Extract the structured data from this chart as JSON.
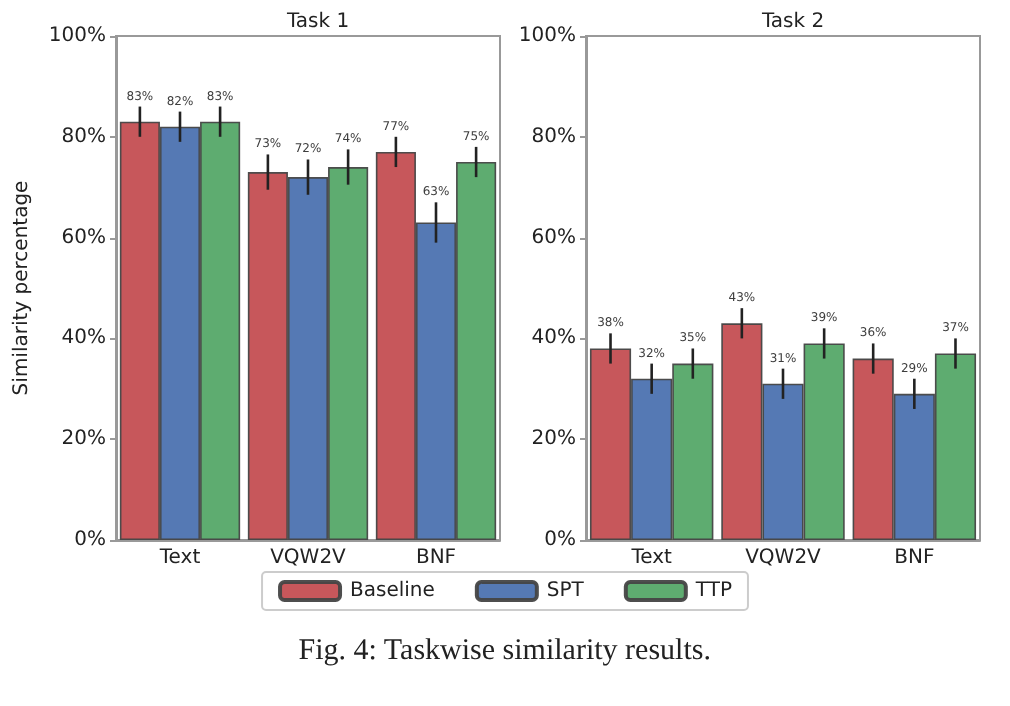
{
  "chart_data": [
    {
      "type": "bar",
      "title": "Task 1",
      "ylabel": "Similarity percentage",
      "categories": [
        "Text",
        "VQW2V",
        "BNF"
      ],
      "series": [
        {
          "name": "Baseline",
          "color": "#c44e52",
          "values": [
            83,
            73,
            77
          ],
          "errors": [
            3,
            3.5,
            3
          ],
          "value_labels": [
            "83%",
            "73%",
            "77%"
          ]
        },
        {
          "name": "SPT",
          "color": "#4c72b0",
          "values": [
            82,
            72,
            63
          ],
          "errors": [
            3,
            3.5,
            4
          ],
          "value_labels": [
            "82%",
            "72%",
            "63%"
          ]
        },
        {
          "name": "TTP",
          "color": "#55a868",
          "values": [
            83,
            74,
            75
          ],
          "errors": [
            3,
            3.5,
            3
          ],
          "value_labels": [
            "83%",
            "74%",
            "75%"
          ]
        }
      ],
      "ylim": [
        0,
        100
      ],
      "yticks": [
        {
          "value": 0,
          "label": "0%"
        },
        {
          "value": 20,
          "label": "20%"
        },
        {
          "value": 40,
          "label": "40%"
        },
        {
          "value": 60,
          "label": "60%"
        },
        {
          "value": 80,
          "label": "80%"
        },
        {
          "value": 100,
          "label": "100%"
        }
      ],
      "grid": false,
      "legend": "bottom",
      "annotations": [
        "Fig. 4: Taskwise similarity results."
      ]
    },
    {
      "type": "bar",
      "title": "Task 2",
      "categories": [
        "Text",
        "VQW2V",
        "BNF"
      ],
      "series": [
        {
          "color": "#c44e52",
          "values": [
            38,
            43,
            36
          ],
          "errors": [
            3,
            3,
            3
          ],
          "value_labels": [
            "38%",
            "43%",
            "36%"
          ]
        },
        {
          "color": "#4c72b0",
          "values": [
            32,
            31,
            29
          ],
          "errors": [
            3,
            3,
            3
          ],
          "value_labels": [
            "32%",
            "31%",
            "29%"
          ]
        },
        {
          "color": "#55a868",
          "values": [
            35,
            39,
            37
          ],
          "errors": [
            3,
            3,
            3
          ],
          "value_labels": [
            "35%",
            "39%",
            "37%"
          ]
        }
      ],
      "ylim": [
        0,
        100
      ],
      "yticks": [
        {
          "value": 0,
          "label": "0%"
        },
        {
          "value": 20,
          "label": "20%"
        },
        {
          "value": 40,
          "label": "40%"
        },
        {
          "value": 60,
          "label": "60%"
        },
        {
          "value": 80,
          "label": "80%"
        },
        {
          "value": 100,
          "label": "100%"
        }
      ],
      "grid": false,
      "legend": false
    }
  ]
}
